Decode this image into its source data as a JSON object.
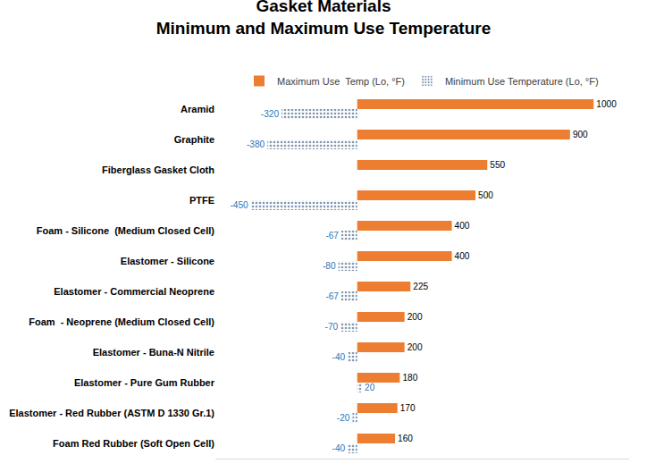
{
  "chart_data": {
    "type": "bar",
    "orientation": "horizontal",
    "title": "Gasket Materials\nMinimum and Maximum Use Temperature",
    "categories": [
      "Aramid",
      "Graphite",
      "Fiberglass Gasket Cloth",
      "PTFE",
      "Foam - Silicone  (Medium Closed Cell)",
      "Elastomer - Silicone",
      "Elastomer - Commercial Neoprene",
      "Foam  - Neoprene (Medium Closed Cell)",
      "Elastomer - Buna-N Nitrile",
      "Elastomer - Pure Gum Rubber",
      "Elastomer - Red Rubber (ASTM D 1330 Gr.1)",
      "Foam Red Rubber (Soft Open Cell)"
    ],
    "series": [
      {
        "name": "Maximum Use  Temp (Lo, °F)",
        "color": "#ED7D31",
        "marker": "solid",
        "values": [
          1000,
          900,
          550,
          500,
          400,
          400,
          225,
          200,
          200,
          180,
          170,
          160
        ]
      },
      {
        "name": "Minimum Use Temperature (Lo, °F)",
        "color": "#8497B0",
        "marker": "dotted",
        "values": [
          -320,
          -380,
          null,
          -450,
          -67,
          -80,
          -67,
          -70,
          -40,
          20,
          -20,
          -40
        ]
      }
    ],
    "xlim": [
      -600,
      1150
    ],
    "xticks": [],
    "tick_labels": "y",
    "grid": false,
    "data_labels": true,
    "legend": "top"
  }
}
